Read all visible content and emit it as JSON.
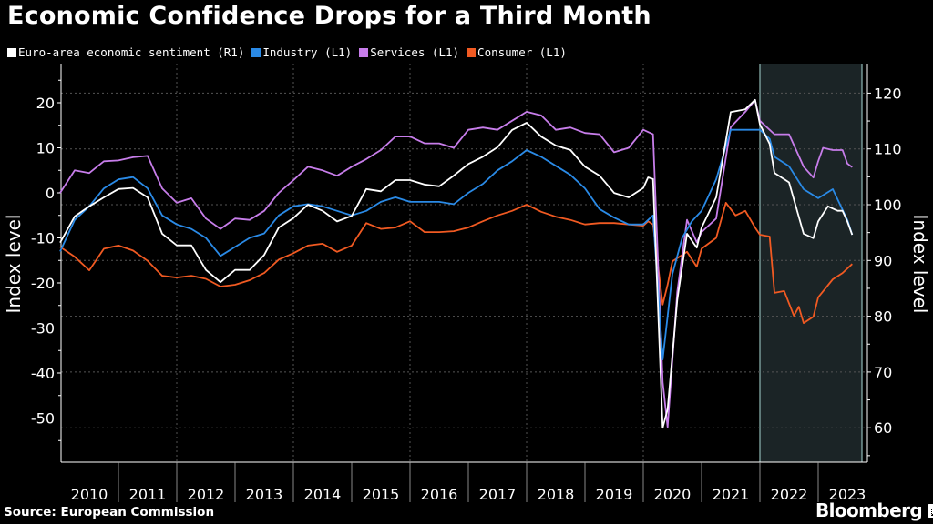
{
  "chart_data": {
    "type": "line",
    "title": "Economic Confidence Drops for a Third Month",
    "ylabel_left": "Index level",
    "ylabel_right": "Index level",
    "ylim_left": [
      -59,
      26
    ],
    "ylim_right": [
      54.5,
      123
    ],
    "yticks_left": [
      20,
      10,
      0,
      -10,
      -20,
      -30,
      -40,
      -50
    ],
    "yticks_right": [
      120,
      110,
      100,
      90,
      80,
      70,
      60
    ],
    "xlim": [
      "2010-01",
      "2023-10"
    ],
    "xtick_labels": [
      "2010",
      "2011",
      "2012",
      "2013",
      "2014",
      "2015",
      "2016",
      "2017",
      "2018",
      "2019",
      "2020",
      "2021",
      "2022",
      "2023"
    ],
    "grid": true,
    "legend_position": "top-left",
    "shaded_period": [
      "2022-01",
      "2023-10"
    ],
    "series": [
      {
        "name": "Euro-area economic sentiment (R1)",
        "axis": "right",
        "color": "#ffffff",
        "points": [
          [
            "2010-01",
            93.2
          ],
          [
            "2010-04",
            97.9
          ],
          [
            "2010-07",
            99.7
          ],
          [
            "2010-10",
            101.3
          ],
          [
            "2011-01",
            102.8
          ],
          [
            "2011-04",
            103
          ],
          [
            "2011-07",
            101.3
          ],
          [
            "2011-10",
            94.8
          ],
          [
            "2012-01",
            92.7
          ],
          [
            "2012-04",
            92.7
          ],
          [
            "2012-07",
            88.3
          ],
          [
            "2012-10",
            86.1
          ],
          [
            "2013-01",
            88.3
          ],
          [
            "2013-04",
            88.3
          ],
          [
            "2013-07",
            91
          ],
          [
            "2013-10",
            95.9
          ],
          [
            "2014-01",
            97.6
          ],
          [
            "2014-04",
            100
          ],
          [
            "2014-07",
            98.9
          ],
          [
            "2014-10",
            97
          ],
          [
            "2015-01",
            98
          ],
          [
            "2015-04",
            102.8
          ],
          [
            "2015-07",
            102.4
          ],
          [
            "2015-10",
            104.4
          ],
          [
            "2016-01",
            104.4
          ],
          [
            "2016-04",
            103.6
          ],
          [
            "2016-07",
            103.3
          ],
          [
            "2016-10",
            105.2
          ],
          [
            "2017-01",
            107.3
          ],
          [
            "2017-04",
            108.6
          ],
          [
            "2017-07",
            110.3
          ],
          [
            "2017-10",
            113.4
          ],
          [
            "2018-01",
            114.7
          ],
          [
            "2018-04",
            112.2
          ],
          [
            "2018-07",
            110.6
          ],
          [
            "2018-10",
            109.8
          ],
          [
            "2019-01",
            106.8
          ],
          [
            "2019-04",
            105.2
          ],
          [
            "2019-07",
            102.1
          ],
          [
            "2019-10",
            101.3
          ],
          [
            "2020-01",
            103
          ],
          [
            "2020-02",
            104.9
          ],
          [
            "2020-03",
            104.6
          ],
          [
            "2020-05",
            60
          ],
          [
            "2020-06",
            63.3
          ],
          [
            "2020-08",
            82.9
          ],
          [
            "2020-10",
            94.8
          ],
          [
            "2020-12",
            92.3
          ],
          [
            "2021-01",
            95.9
          ],
          [
            "2021-04",
            101.3
          ],
          [
            "2021-07",
            116.6
          ],
          [
            "2021-10",
            117.1
          ],
          [
            "2021-12",
            118.8
          ],
          [
            "2022-01",
            114.4
          ],
          [
            "2022-03",
            110.9
          ],
          [
            "2022-04",
            105.7
          ],
          [
            "2022-07",
            104
          ],
          [
            "2022-10",
            94.8
          ],
          [
            "2022-12",
            94
          ],
          [
            "2023-01",
            97
          ],
          [
            "2023-03",
            99.7
          ],
          [
            "2023-05",
            98.9
          ],
          [
            "2023-06",
            98.9
          ],
          [
            "2023-07",
            97
          ],
          [
            "2023-08",
            94.6
          ]
        ]
      },
      {
        "name": "Industry (L1)",
        "axis": "left",
        "color": "#2a8ae6",
        "points": [
          [
            "2010-01",
            -13
          ],
          [
            "2010-04",
            -6
          ],
          [
            "2010-07",
            -3
          ],
          [
            "2010-10",
            1
          ],
          [
            "2011-01",
            3
          ],
          [
            "2011-04",
            3.5
          ],
          [
            "2011-07",
            1
          ],
          [
            "2011-10",
            -5
          ],
          [
            "2012-01",
            -7
          ],
          [
            "2012-04",
            -8
          ],
          [
            "2012-07",
            -10
          ],
          [
            "2012-10",
            -14
          ],
          [
            "2013-01",
            -12
          ],
          [
            "2013-04",
            -10
          ],
          [
            "2013-07",
            -9
          ],
          [
            "2013-10",
            -5
          ],
          [
            "2014-01",
            -3
          ],
          [
            "2014-04",
            -2.5
          ],
          [
            "2014-07",
            -3
          ],
          [
            "2014-10",
            -4
          ],
          [
            "2015-01",
            -5
          ],
          [
            "2015-04",
            -4
          ],
          [
            "2015-07",
            -2
          ],
          [
            "2015-10",
            -1
          ],
          [
            "2016-01",
            -2
          ],
          [
            "2016-04",
            -2
          ],
          [
            "2016-07",
            -2
          ],
          [
            "2016-10",
            -2.5
          ],
          [
            "2017-01",
            0
          ],
          [
            "2017-04",
            2
          ],
          [
            "2017-07",
            5
          ],
          [
            "2017-10",
            7
          ],
          [
            "2018-01",
            9.5
          ],
          [
            "2018-04",
            8
          ],
          [
            "2018-07",
            6
          ],
          [
            "2018-10",
            4
          ],
          [
            "2019-01",
            1
          ],
          [
            "2019-04",
            -3.6
          ],
          [
            "2019-07",
            -5.5
          ],
          [
            "2019-10",
            -7
          ],
          [
            "2020-01",
            -7
          ],
          [
            "2020-03",
            -5
          ],
          [
            "2020-05",
            -37
          ],
          [
            "2020-07",
            -18
          ],
          [
            "2020-09",
            -10
          ],
          [
            "2020-11",
            -6.3
          ],
          [
            "2021-01",
            -4
          ],
          [
            "2021-04",
            3
          ],
          [
            "2021-07",
            14
          ],
          [
            "2021-10",
            14
          ],
          [
            "2022-01",
            14
          ],
          [
            "2022-03",
            12
          ],
          [
            "2022-04",
            8
          ],
          [
            "2022-07",
            5.9
          ],
          [
            "2022-10",
            0.8
          ],
          [
            "2023-01",
            -1.2
          ],
          [
            "2023-04",
            0.8
          ],
          [
            "2023-07",
            -6
          ],
          [
            "2023-08",
            -9.3
          ]
        ]
      },
      {
        "name": "Services (L1)",
        "axis": "left",
        "color": "#c77dea",
        "points": [
          [
            "2010-01",
            0
          ],
          [
            "2010-04",
            5
          ],
          [
            "2010-07",
            4.4
          ],
          [
            "2010-10",
            7
          ],
          [
            "2011-01",
            7.2
          ],
          [
            "2011-04",
            7.9
          ],
          [
            "2011-07",
            8.2
          ],
          [
            "2011-10",
            1
          ],
          [
            "2012-01",
            -2.2
          ],
          [
            "2012-04",
            -1.2
          ],
          [
            "2012-07",
            -5.7
          ],
          [
            "2012-10",
            -8
          ],
          [
            "2013-01",
            -5.7
          ],
          [
            "2013-04",
            -6
          ],
          [
            "2013-07",
            -4
          ],
          [
            "2013-10",
            0
          ],
          [
            "2014-01",
            2.8
          ],
          [
            "2014-04",
            5.8
          ],
          [
            "2014-07",
            5
          ],
          [
            "2014-10",
            3.8
          ],
          [
            "2015-01",
            5.8
          ],
          [
            "2015-04",
            7.5
          ],
          [
            "2015-07",
            9.5
          ],
          [
            "2015-10",
            12.5
          ],
          [
            "2016-01",
            12.5
          ],
          [
            "2016-04",
            11
          ],
          [
            "2016-07",
            11
          ],
          [
            "2016-10",
            10
          ],
          [
            "2017-01",
            14
          ],
          [
            "2017-04",
            14.5
          ],
          [
            "2017-07",
            14
          ],
          [
            "2017-10",
            16
          ],
          [
            "2018-01",
            18
          ],
          [
            "2018-04",
            17.2
          ],
          [
            "2018-07",
            14
          ],
          [
            "2018-10",
            14.5
          ],
          [
            "2019-01",
            13.3
          ],
          [
            "2019-04",
            13
          ],
          [
            "2019-07",
            9
          ],
          [
            "2019-10",
            10
          ],
          [
            "2020-01",
            14
          ],
          [
            "2020-03",
            13
          ],
          [
            "2020-05",
            -42
          ],
          [
            "2020-06",
            -52
          ],
          [
            "2020-08",
            -22
          ],
          [
            "2020-10",
            -6
          ],
          [
            "2020-12",
            -11
          ],
          [
            "2021-01",
            -8.7
          ],
          [
            "2021-04",
            -5.7
          ],
          [
            "2021-07",
            14.6
          ],
          [
            "2021-10",
            18
          ],
          [
            "2021-12",
            20.6
          ],
          [
            "2022-01",
            16
          ],
          [
            "2022-04",
            13
          ],
          [
            "2022-07",
            13
          ],
          [
            "2022-10",
            5.8
          ],
          [
            "2022-12",
            3.4
          ],
          [
            "2023-01",
            7
          ],
          [
            "2023-02",
            10
          ],
          [
            "2023-04",
            9.5
          ],
          [
            "2023-06",
            9.5
          ],
          [
            "2023-07",
            6.5
          ],
          [
            "2023-08",
            5.7
          ]
        ]
      },
      {
        "name": "Consumer (L1)",
        "axis": "left",
        "color": "#f15a22",
        "points": [
          [
            "2010-01",
            -12
          ],
          [
            "2010-04",
            -14.2
          ],
          [
            "2010-07",
            -17.2
          ],
          [
            "2010-10",
            -12.4
          ],
          [
            "2011-01",
            -11.7
          ],
          [
            "2011-04",
            -12.8
          ],
          [
            "2011-07",
            -15.1
          ],
          [
            "2011-10",
            -18.4
          ],
          [
            "2012-01",
            -18.8
          ],
          [
            "2012-04",
            -18.4
          ],
          [
            "2012-07",
            -19.1
          ],
          [
            "2012-10",
            -20.8
          ],
          [
            "2013-01",
            -20.4
          ],
          [
            "2013-04",
            -19.4
          ],
          [
            "2013-07",
            -17.8
          ],
          [
            "2013-10",
            -14.8
          ],
          [
            "2014-01",
            -13.4
          ],
          [
            "2014-04",
            -11.7
          ],
          [
            "2014-07",
            -11.3
          ],
          [
            "2014-10",
            -13.1
          ],
          [
            "2015-01",
            -11.7
          ],
          [
            "2015-04",
            -6.7
          ],
          [
            "2015-07",
            -8
          ],
          [
            "2015-10",
            -7.7
          ],
          [
            "2016-01",
            -6.3
          ],
          [
            "2016-04",
            -8.7
          ],
          [
            "2016-07",
            -8.7
          ],
          [
            "2016-10",
            -8.5
          ],
          [
            "2017-01",
            -7.7
          ],
          [
            "2017-04",
            -6.3
          ],
          [
            "2017-07",
            -5
          ],
          [
            "2017-10",
            -4
          ],
          [
            "2018-01",
            -2.6
          ],
          [
            "2018-04",
            -4.2
          ],
          [
            "2018-07",
            -5.3
          ],
          [
            "2018-10",
            -6
          ],
          [
            "2019-01",
            -7
          ],
          [
            "2019-04",
            -6.7
          ],
          [
            "2019-07",
            -6.7
          ],
          [
            "2019-10",
            -7
          ],
          [
            "2020-01",
            -7.3
          ],
          [
            "2020-02",
            -6.3
          ],
          [
            "2020-03",
            -7
          ],
          [
            "2020-05",
            -24.8
          ],
          [
            "2020-06",
            -20.4
          ],
          [
            "2020-07",
            -15.2
          ],
          [
            "2020-10",
            -13.1
          ],
          [
            "2020-12",
            -16.4
          ],
          [
            "2021-01",
            -12.4
          ],
          [
            "2021-04",
            -10
          ],
          [
            "2021-06",
            -2.2
          ],
          [
            "2021-08",
            -5
          ],
          [
            "2021-10",
            -4
          ],
          [
            "2021-12",
            -7.7
          ],
          [
            "2022-01",
            -9.3
          ],
          [
            "2022-03",
            -9.7
          ],
          [
            "2022-04",
            -22.2
          ],
          [
            "2022-06",
            -21.8
          ],
          [
            "2022-08",
            -27.3
          ],
          [
            "2022-09",
            -25.3
          ],
          [
            "2022-10",
            -28.9
          ],
          [
            "2022-12",
            -27.5
          ],
          [
            "2023-01",
            -23.2
          ],
          [
            "2023-04",
            -19.2
          ],
          [
            "2023-06",
            -17.8
          ],
          [
            "2023-08",
            -15.8
          ]
        ]
      }
    ]
  },
  "source": "Source: European Commission",
  "logo": "Bloomberg"
}
